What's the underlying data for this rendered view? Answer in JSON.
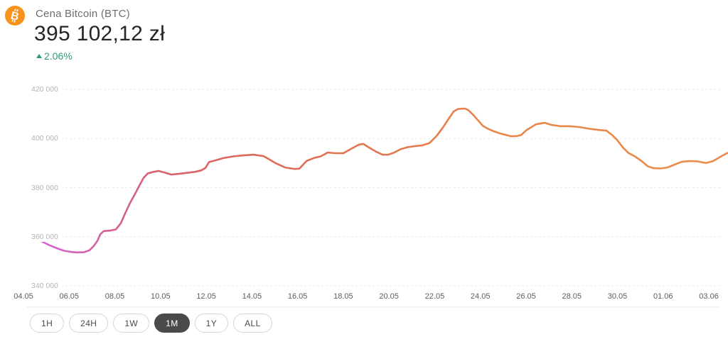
{
  "header": {
    "title": "Cena Bitcoin (BTC)",
    "price": "395 102,12 zł",
    "change": "2.06%",
    "change_direction": "up",
    "change_color": "#2e9e6f",
    "coin_icon": "bitcoin-icon",
    "coin_icon_color": "#f7931a"
  },
  "chart_data": {
    "type": "line",
    "title": "Cena Bitcoin (BTC)",
    "currency": "PLN (zł)",
    "ylim": [
      340000,
      420000
    ],
    "y_ticks": [
      "420 000",
      "400 000",
      "380 000",
      "360 000",
      "340 000"
    ],
    "y_tick_values": [
      420000,
      400000,
      380000,
      360000,
      340000
    ],
    "x_ticks": [
      "04.05",
      "06.05",
      "08.05",
      "10.05",
      "12.05",
      "14.05",
      "16.05",
      "18.05",
      "20.05",
      "22.05",
      "24.05",
      "26.05",
      "28.05",
      "30.05",
      "01.06",
      "03.06"
    ],
    "grid": "horizontal-dashed",
    "legend": "none",
    "line_gradient": [
      {
        "offset": 0,
        "color": "#d264d9"
      },
      {
        "offset": 0.09,
        "color": "#d75f9e"
      },
      {
        "offset": 0.17,
        "color": "#d96070"
      },
      {
        "offset": 0.28,
        "color": "#dc675c"
      },
      {
        "offset": 0.48,
        "color": "#e3764f"
      },
      {
        "offset": 0.68,
        "color": "#e9854a"
      },
      {
        "offset": 1,
        "color": "#ec8c4c"
      }
    ],
    "points": [
      [
        56,
        358500
      ],
      [
        62,
        357600
      ],
      [
        70,
        356500
      ],
      [
        80,
        355300
      ],
      [
        90,
        354300
      ],
      [
        98,
        353900
      ],
      [
        108,
        353600
      ],
      [
        118,
        353700
      ],
      [
        126,
        354500
      ],
      [
        132,
        356300
      ],
      [
        137,
        358300
      ],
      [
        141,
        361000
      ],
      [
        146,
        362300
      ],
      [
        155,
        362500
      ],
      [
        163,
        363000
      ],
      [
        170,
        365500
      ],
      [
        176,
        369500
      ],
      [
        183,
        373800
      ],
      [
        190,
        377500
      ],
      [
        196,
        380800
      ],
      [
        202,
        384000
      ],
      [
        208,
        385800
      ],
      [
        216,
        386400
      ],
      [
        223,
        386800
      ],
      [
        232,
        386100
      ],
      [
        241,
        385300
      ],
      [
        252,
        385600
      ],
      [
        263,
        386000
      ],
      [
        274,
        386400
      ],
      [
        283,
        387000
      ],
      [
        289,
        388000
      ],
      [
        294,
        390400
      ],
      [
        303,
        391100
      ],
      [
        314,
        392000
      ],
      [
        328,
        392700
      ],
      [
        342,
        393100
      ],
      [
        357,
        393400
      ],
      [
        371,
        392800
      ],
      [
        388,
        389900
      ],
      [
        401,
        388200
      ],
      [
        414,
        387600
      ],
      [
        421,
        387700
      ],
      [
        431,
        390800
      ],
      [
        441,
        392000
      ],
      [
        451,
        392700
      ],
      [
        461,
        394300
      ],
      [
        471,
        394000
      ],
      [
        483,
        394000
      ],
      [
        494,
        395800
      ],
      [
        505,
        397500
      ],
      [
        511,
        397800
      ],
      [
        518,
        396500
      ],
      [
        528,
        394800
      ],
      [
        538,
        393400
      ],
      [
        546,
        393400
      ],
      [
        554,
        394200
      ],
      [
        564,
        395700
      ],
      [
        574,
        396500
      ],
      [
        584,
        396900
      ],
      [
        594,
        397200
      ],
      [
        604,
        398100
      ],
      [
        614,
        401000
      ],
      [
        623,
        404500
      ],
      [
        631,
        408000
      ],
      [
        638,
        411000
      ],
      [
        644,
        412000
      ],
      [
        654,
        412200
      ],
      [
        659,
        411500
      ],
      [
        666,
        409500
      ],
      [
        673,
        407200
      ],
      [
        679,
        405200
      ],
      [
        686,
        404000
      ],
      [
        694,
        403000
      ],
      [
        704,
        402000
      ],
      [
        712,
        401400
      ],
      [
        719,
        400900
      ],
      [
        727,
        401000
      ],
      [
        733,
        401400
      ],
      [
        741,
        403500
      ],
      [
        754,
        405800
      ],
      [
        766,
        406400
      ],
      [
        776,
        405500
      ],
      [
        788,
        405000
      ],
      [
        801,
        405000
      ],
      [
        814,
        404700
      ],
      [
        828,
        404000
      ],
      [
        841,
        403500
      ],
      [
        853,
        403200
      ],
      [
        861,
        401400
      ],
      [
        868,
        399400
      ],
      [
        876,
        396400
      ],
      [
        884,
        394100
      ],
      [
        893,
        392700
      ],
      [
        903,
        390700
      ],
      [
        911,
        388700
      ],
      [
        919,
        387900
      ],
      [
        929,
        387800
      ],
      [
        939,
        388200
      ],
      [
        949,
        389400
      ],
      [
        959,
        390500
      ],
      [
        969,
        390800
      ],
      [
        981,
        390700
      ],
      [
        993,
        390000
      ],
      [
        1003,
        390800
      ],
      [
        1013,
        392500
      ],
      [
        1023,
        394100
      ]
    ]
  },
  "ranges": {
    "selected": "1M",
    "selected_index": 3,
    "items": [
      {
        "label": "1H"
      },
      {
        "label": "24H"
      },
      {
        "label": "1W"
      },
      {
        "label": "1M"
      },
      {
        "label": "1Y"
      },
      {
        "label": "ALL"
      }
    ]
  }
}
